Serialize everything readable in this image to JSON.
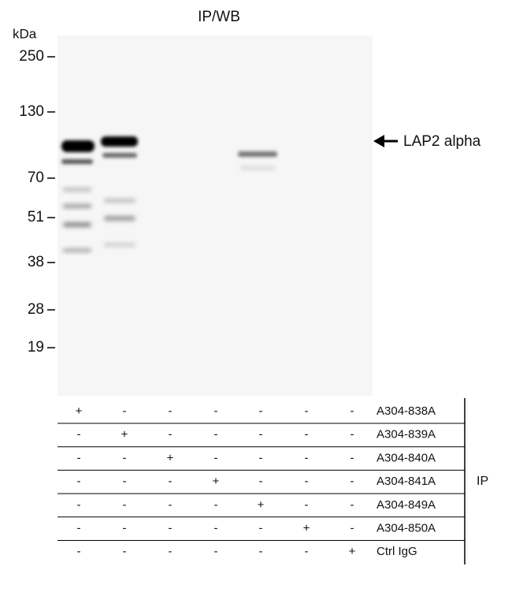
{
  "title": "IP/WB",
  "unit": "kDa",
  "markers": [
    "250",
    "130",
    "70",
    "51",
    "38",
    "28",
    "19"
  ],
  "band_label": "LAP2 alpha",
  "table": {
    "rows": [
      {
        "signs": [
          "+",
          "-",
          "-",
          "-",
          "-",
          "-",
          "-"
        ],
        "label": "A304-838A"
      },
      {
        "signs": [
          "-",
          "+",
          "-",
          "-",
          "-",
          "-",
          "-"
        ],
        "label": "A304-839A"
      },
      {
        "signs": [
          "-",
          "-",
          "+",
          "-",
          "-",
          "-",
          "-"
        ],
        "label": "A304-840A"
      },
      {
        "signs": [
          "-",
          "-",
          "-",
          "+",
          "-",
          "-",
          "-"
        ],
        "label": "A304-841A"
      },
      {
        "signs": [
          "-",
          "-",
          "-",
          "-",
          "+",
          "-",
          "-"
        ],
        "label": "A304-849A"
      },
      {
        "signs": [
          "-",
          "-",
          "-",
          "-",
          "-",
          "+",
          "-"
        ],
        "label": "A304-850A"
      },
      {
        "signs": [
          "-",
          "-",
          "-",
          "-",
          "-",
          "-",
          "+"
        ],
        "label": "Ctrl IgG"
      }
    ]
  },
  "side_label": "IP"
}
